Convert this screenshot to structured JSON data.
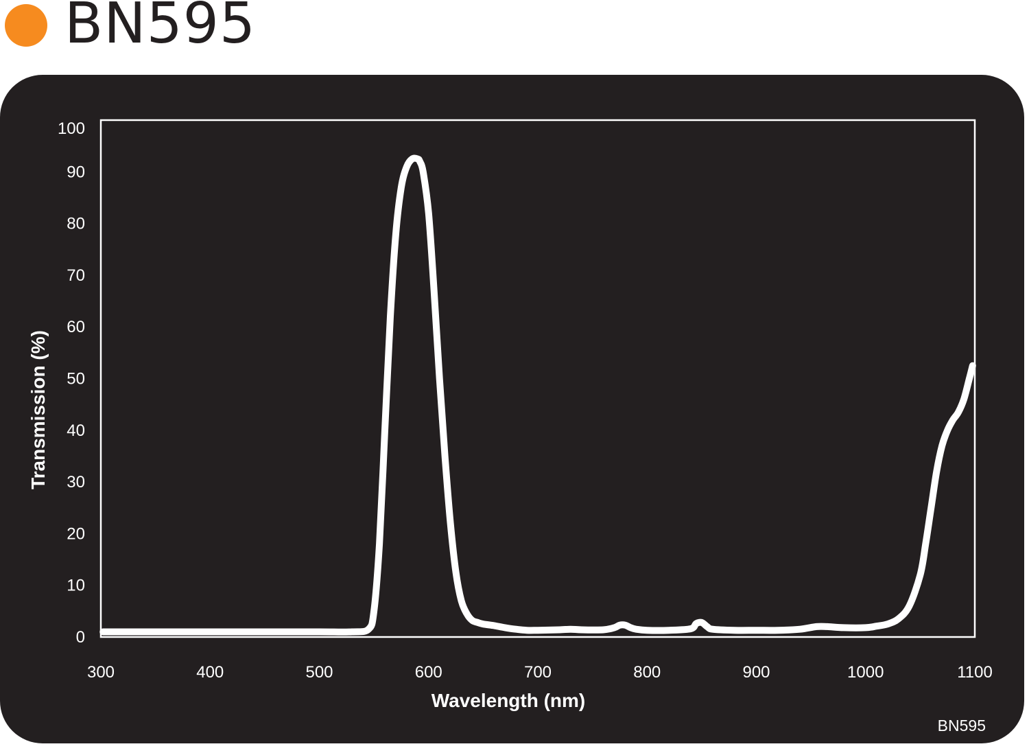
{
  "header": {
    "title": "BN595",
    "dot_color": "#f68b1f"
  },
  "panel": {
    "background": "#231f20",
    "footnote": "BN595"
  },
  "chart_data": {
    "type": "line",
    "title": "",
    "xlabel": "Wavelength (nm)",
    "ylabel": "Transmission (%)",
    "xlim": [
      300,
      1100
    ],
    "ylim": [
      0,
      100
    ],
    "xticks": [
      300,
      400,
      500,
      600,
      700,
      800,
      900,
      1000,
      1100
    ],
    "yticks": [
      0,
      10,
      20,
      30,
      40,
      50,
      60,
      70,
      80,
      90,
      100
    ],
    "grid": false,
    "legend": "none",
    "line_color": "#ffffff",
    "series": [
      {
        "x": [
          302,
          350,
          400,
          450,
          500,
          530,
          545,
          550,
          555,
          560,
          565,
          570,
          575,
          580,
          585,
          590,
          592,
          595,
          600,
          605,
          610,
          615,
          620,
          625,
          630,
          635,
          640,
          645,
          650,
          660,
          670,
          680,
          690,
          700,
          720,
          730,
          740,
          760,
          770,
          775,
          780,
          785,
          790,
          800,
          820,
          840,
          845,
          850,
          855,
          860,
          880,
          900,
          920,
          940,
          955,
          965,
          980,
          1000,
          1010,
          1020,
          1030,
          1040,
          1050,
          1055,
          1060,
          1065,
          1070,
          1075,
          1080,
          1085,
          1090,
          1095,
          1098
        ],
        "y": [
          1,
          1,
          1,
          1,
          1,
          1,
          1.5,
          5,
          18,
          40,
          62,
          78,
          87,
          91,
          92.5,
          92.5,
          92,
          90,
          82,
          67,
          50,
          35,
          22,
          12.5,
          7,
          4.5,
          3.2,
          2.8,
          2.5,
          2.2,
          1.8,
          1.5,
          1.3,
          1.3,
          1.4,
          1.5,
          1.4,
          1.4,
          1.8,
          2.3,
          2.3,
          1.8,
          1.5,
          1.3,
          1.3,
          1.6,
          2.6,
          2.8,
          2.0,
          1.5,
          1.3,
          1.3,
          1.3,
          1.5,
          2.0,
          2.0,
          1.8,
          1.8,
          2.1,
          2.5,
          3.5,
          6.0,
          12,
          18,
          25,
          32,
          37,
          40,
          42,
          43.5,
          46,
          50,
          52.5
        ]
      }
    ]
  }
}
